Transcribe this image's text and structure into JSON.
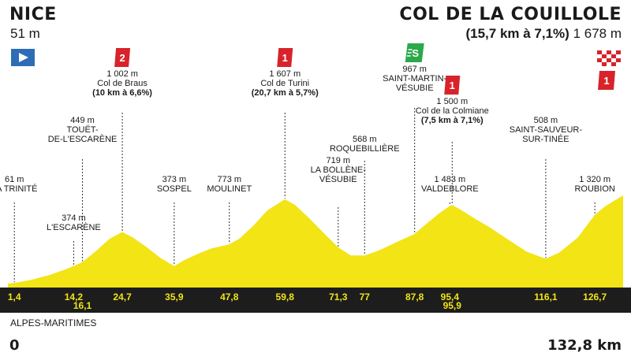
{
  "header": {
    "start_name": "NICE",
    "start_alt": "51 m",
    "finish_name": "COL DE LA COUILLOLE",
    "finish_climb": "(15,7 km à 7,1%)",
    "finish_alt": "1 678 m"
  },
  "footer": {
    "region": "ALPES-MARITIMES",
    "start_km": "0",
    "end_km": "132,8 km"
  },
  "colors": {
    "profile_fill": "#f2e415",
    "baseline": "#1d1d1d",
    "km_text": "#f2e415",
    "marker_red": "#d8232a",
    "marker_green": "#2aa84a",
    "start_flag": "#2e6db5"
  },
  "chart_data": {
    "type": "area",
    "xlabel": "",
    "ylabel": "",
    "xlim": [
      0,
      132.8
    ],
    "ylim": [
      0,
      1800
    ],
    "profile": [
      [
        0,
        51
      ],
      [
        1.4,
        61
      ],
      [
        5,
        120
      ],
      [
        9,
        210
      ],
      [
        12,
        300
      ],
      [
        14.2,
        374
      ],
      [
        16.1,
        449
      ],
      [
        19,
        650
      ],
      [
        22,
        880
      ],
      [
        24.7,
        1002
      ],
      [
        27,
        900
      ],
      [
        30,
        720
      ],
      [
        33,
        520
      ],
      [
        35.9,
        373
      ],
      [
        38,
        480
      ],
      [
        41,
        600
      ],
      [
        44,
        700
      ],
      [
        47.8,
        773
      ],
      [
        50,
        880
      ],
      [
        53,
        1120
      ],
      [
        56,
        1400
      ],
      [
        59.8,
        1607
      ],
      [
        62,
        1500
      ],
      [
        65,
        1260
      ],
      [
        68,
        1000
      ],
      [
        71.3,
        719
      ],
      [
        74,
        570
      ],
      [
        77,
        568
      ],
      [
        80,
        660
      ],
      [
        84,
        820
      ],
      [
        87.8,
        967
      ],
      [
        90,
        1130
      ],
      [
        93,
        1340
      ],
      [
        95.4,
        1483
      ],
      [
        95.9,
        1500
      ],
      [
        98,
        1400
      ],
      [
        101,
        1240
      ],
      [
        104,
        1090
      ],
      [
        108,
        860
      ],
      [
        112,
        640
      ],
      [
        116.1,
        508
      ],
      [
        119,
        620
      ],
      [
        123,
        900
      ],
      [
        126.7,
        1320
      ],
      [
        129,
        1480
      ],
      [
        132.8,
        1678
      ]
    ],
    "waypoints": [
      {
        "km": 1.4,
        "alt": 61,
        "tick": "1,4",
        "alt_label": "61 m",
        "name": [
          "LA TRINITÉ"
        ]
      },
      {
        "km": 14.2,
        "alt": 374,
        "tick": "14,2",
        "alt_label": "374 m",
        "name": [
          "L'ESCARÈNE"
        ]
      },
      {
        "km": 16.1,
        "alt": 449,
        "tick": "16,1",
        "alt_label": "449 m",
        "name": [
          "TOUËT-",
          "DE-L'ESCARÈNE"
        ]
      },
      {
        "km": 24.7,
        "alt": 1002,
        "tick": "24,7",
        "alt_label": "1 002 m",
        "name": [
          "Col de Braus"
        ],
        "climb": "(10 km à 6,6%)",
        "category": "2"
      },
      {
        "km": 35.9,
        "alt": 373,
        "tick": "35,9",
        "alt_label": "373 m",
        "name": [
          "SOSPEL"
        ]
      },
      {
        "km": 47.8,
        "alt": 773,
        "tick": "47,8",
        "alt_label": "773 m",
        "name": [
          "MOULINET"
        ]
      },
      {
        "km": 59.8,
        "alt": 1607,
        "tick": "59,8",
        "alt_label": "1 607 m",
        "name": [
          "Col de Turini"
        ],
        "climb": "(20,7 km à 5,7%)",
        "category": "1"
      },
      {
        "km": 71.3,
        "alt": 719,
        "tick": "71,3",
        "alt_label": "719 m",
        "name": [
          "LA BOLLÈNE-",
          "VÉSUBIE"
        ]
      },
      {
        "km": 77,
        "alt": 568,
        "tick": "77",
        "alt_label": "568 m",
        "name": [
          "ROQUEBILLIÈRE"
        ]
      },
      {
        "km": 87.8,
        "alt": 967,
        "tick": "87,8",
        "alt_label": "967 m",
        "name": [
          "SAINT-MARTIN-",
          "VÉSUBIE"
        ],
        "sprint": "S"
      },
      {
        "km": 95.4,
        "alt": 1483,
        "tick": "95,4",
        "alt_label": "1 483 m",
        "name": [
          "VALDEBLORE"
        ]
      },
      {
        "km": 95.9,
        "alt": 1500,
        "tick": "95,9",
        "alt_label": "1 500 m",
        "name": [
          "Col de la Colmiane"
        ],
        "climb": "(7,5 km à 7,1%)",
        "category": "1"
      },
      {
        "km": 116.1,
        "alt": 508,
        "tick": "116,1",
        "alt_label": "508 m",
        "name": [
          "SAINT-SAUVEUR-",
          "SUR-TINÉE"
        ]
      },
      {
        "km": 126.7,
        "alt": 1320,
        "tick": "126,7",
        "alt_label": "1 320 m",
        "name": [
          "ROUBION"
        ]
      }
    ],
    "finish_category": "1"
  }
}
